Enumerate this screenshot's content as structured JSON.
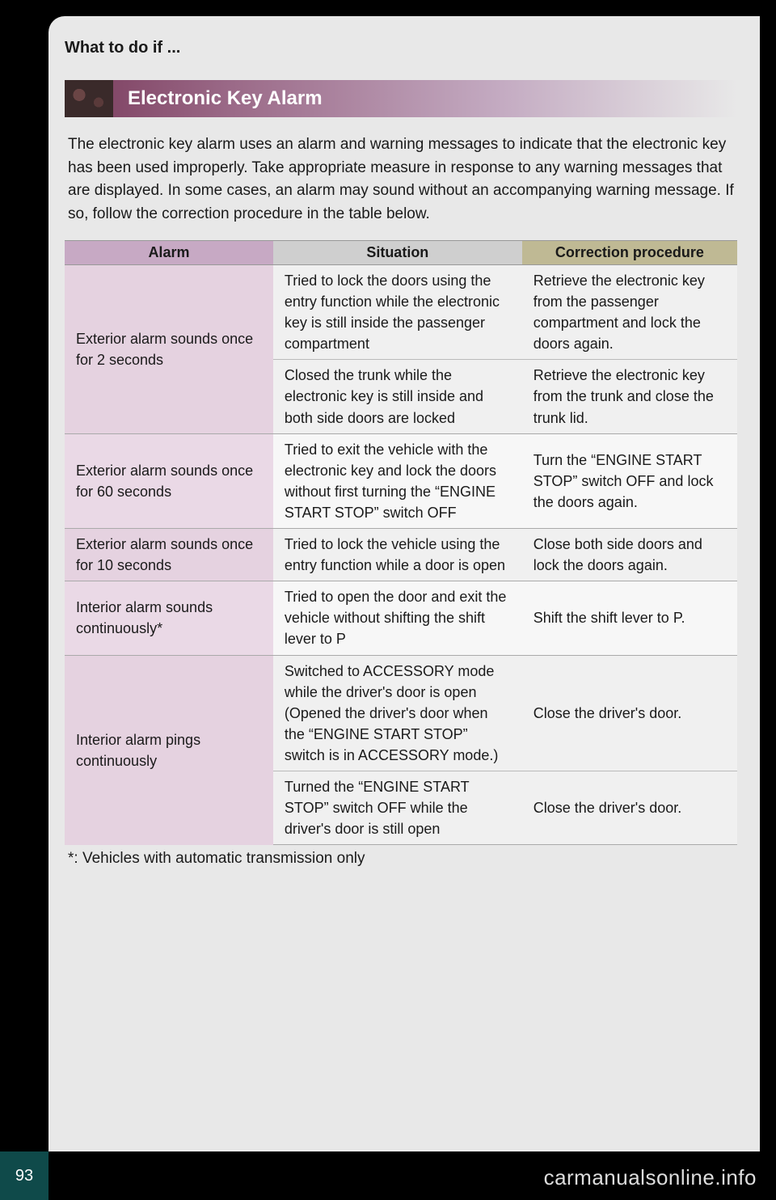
{
  "page": {
    "number": "93",
    "breadcrumb": "What to do if ...",
    "watermark": "carmanualsonline.info"
  },
  "section": {
    "title": "Electronic Key Alarm",
    "intro": "The electronic key alarm uses an alarm and warning messages to indicate that the electronic key has been used improperly. Take appropriate measure in response to any warning messages that are displayed. In some cases, an alarm may sound without an accompanying warning message. If so, follow the correction procedure in the table below.",
    "footnote": "*: Vehicles with automatic transmission only"
  },
  "table": {
    "headers": {
      "alarm": "Alarm",
      "situation": "Situation",
      "correction": "Correction procedure"
    },
    "header_colors": {
      "alarm": "#c7a9c4",
      "situation": "#cfcfcf",
      "correction": "#bfb994"
    },
    "column_widths": [
      "31%",
      "37%",
      "32%"
    ],
    "rows": [
      {
        "alarm": "Exterior alarm sounds once for 2 seconds",
        "situation": "Tried to lock the doors using the entry function while the electronic key is still inside the passenger compartment",
        "correction": "Retrieve the electronic key from the passenger compartment and lock the doors again."
      },
      {
        "alarm": "",
        "situation": "Closed the trunk while the electronic key is still inside and both side doors are locked",
        "correction": "Retrieve the electronic key from the trunk and close the trunk lid."
      },
      {
        "alarm": "Exterior alarm sounds once for 60 seconds",
        "situation": "Tried to exit the vehicle with the electronic key and lock the doors without first turning the “ENGINE START STOP” switch OFF",
        "correction": "Turn the “ENGINE START STOP” switch OFF and lock the doors again."
      },
      {
        "alarm": "Exterior alarm sounds once for 10 seconds",
        "situation": "Tried to lock the vehicle using the entry function while a door is open",
        "correction": "Close both side doors and lock the doors again."
      },
      {
        "alarm": "Interior alarm sounds continuously*",
        "situation": "Tried to open the door and exit the vehicle without shifting the shift lever to P",
        "correction": "Shift the shift lever to P."
      },
      {
        "alarm": "Interior alarm pings continuously",
        "situation": "Switched to ACCESSORY mode while the driver's door is open (Opened the driver's door when the “ENGINE START STOP” switch is in ACCESSORY mode.)",
        "correction": "Close the driver's door."
      },
      {
        "alarm": "",
        "situation": "Turned the “ENGINE START STOP” switch OFF while the driver's door is still open",
        "correction": "Close the driver's door."
      }
    ]
  },
  "style": {
    "row_shade_a": "#f0f0f0",
    "row_shade_b": "#f7f7f7",
    "alarm_shade_a": "#e5d2e0",
    "alarm_shade_b": "#ead9e6",
    "background": "#e8e8e8",
    "page_num_bg": "#0f4a4a",
    "title_gradient_from": "#7a3b5c",
    "title_gradient_to": "#e8e8e8",
    "font_size_body": 19,
    "font_size_title": 24,
    "font_size_table": 18
  }
}
